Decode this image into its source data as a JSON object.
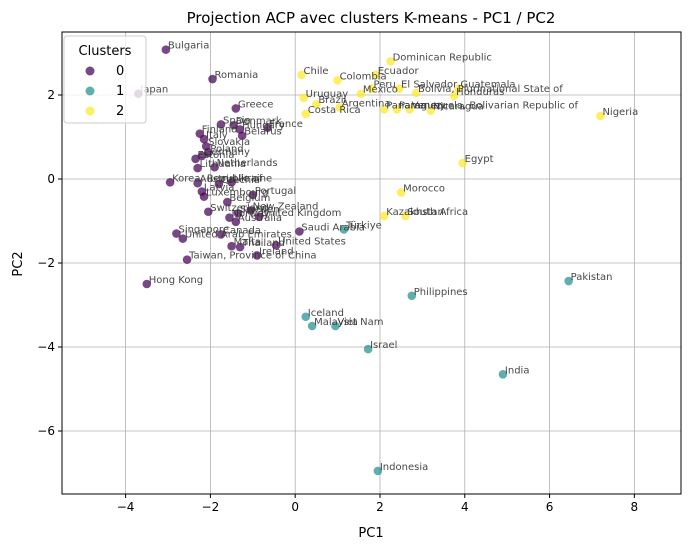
{
  "chart_data": {
    "type": "scatter",
    "title": "Projection ACP avec clusters K-means - PC1 / PC2",
    "xlabel": "PC1",
    "ylabel": "PC2",
    "xlim": [
      -5.5,
      9.1
    ],
    "ylim": [
      -7.5,
      3.5
    ],
    "xticks": [
      -4,
      -2,
      0,
      2,
      4,
      6,
      8
    ],
    "yticks": [
      -6,
      -4,
      -2,
      0,
      2
    ],
    "grid": true,
    "legend": {
      "title": "Clusters",
      "position": "top-left"
    },
    "series": [
      {
        "name": "0",
        "color": "#440154",
        "points": [
          {
            "label": "Bulgaria",
            "x": -3.05,
            "y": 3.08
          },
          {
            "label": "Romania",
            "x": -1.95,
            "y": 2.38
          },
          {
            "label": "Japan",
            "x": -3.7,
            "y": 2.03
          },
          {
            "label": "Greece",
            "x": -1.4,
            "y": 1.68
          },
          {
            "label": "Spain",
            "x": -1.75,
            "y": 1.3
          },
          {
            "label": "Denmark",
            "x": -1.45,
            "y": 1.28
          },
          {
            "label": "France",
            "x": -0.65,
            "y": 1.22
          },
          {
            "label": "Hungary",
            "x": -1.3,
            "y": 1.18
          },
          {
            "label": "Belarus",
            "x": -1.25,
            "y": 1.03
          },
          {
            "label": "Finland",
            "x": -2.25,
            "y": 1.08
          },
          {
            "label": "Italy",
            "x": -2.15,
            "y": 0.95
          },
          {
            "label": "Slovakia",
            "x": -2.1,
            "y": 0.78
          },
          {
            "label": "Poland",
            "x": -2.05,
            "y": 0.62
          },
          {
            "label": "Germany",
            "x": -2.2,
            "y": 0.55
          },
          {
            "label": "Estonia",
            "x": -2.35,
            "y": 0.48
          },
          {
            "label": "Netherlands",
            "x": -1.9,
            "y": 0.28
          },
          {
            "label": "Lithuania",
            "x": -2.3,
            "y": 0.26
          },
          {
            "label": "Korea, Republic of",
            "x": -2.95,
            "y": -0.08
          },
          {
            "label": "Austria",
            "x": -2.3,
            "y": -0.1
          },
          {
            "label": "Ukraine",
            "x": -1.5,
            "y": -0.08
          },
          {
            "label": "Czechia",
            "x": -1.8,
            "y": -0.12
          },
          {
            "label": "Latvia",
            "x": -2.2,
            "y": -0.3
          },
          {
            "label": "Luxembourg",
            "x": -2.15,
            "y": -0.42
          },
          {
            "label": "Portugal",
            "x": -1.0,
            "y": -0.38
          },
          {
            "label": "Belgium",
            "x": -1.6,
            "y": -0.55
          },
          {
            "label": "Switzerland",
            "x": -2.05,
            "y": -0.78
          },
          {
            "label": "New Zealand",
            "x": -1.05,
            "y": -0.75
          },
          {
            "label": "Sweden",
            "x": -1.35,
            "y": -0.82
          },
          {
            "label": "United Kingdom",
            "x": -0.85,
            "y": -0.9
          },
          {
            "label": "Norway",
            "x": -1.55,
            "y": -0.92
          },
          {
            "label": "Australia",
            "x": -1.4,
            "y": -1.02
          },
          {
            "label": "Saudi Arabia",
            "x": 0.1,
            "y": -1.25
          },
          {
            "label": "Singapore",
            "x": -2.8,
            "y": -1.3
          },
          {
            "label": "Canada",
            "x": -1.75,
            "y": -1.32
          },
          {
            "label": "United Arab Emirates",
            "x": -2.65,
            "y": -1.42
          },
          {
            "label": "Malta",
            "x": -1.5,
            "y": -1.6
          },
          {
            "label": "Thailand",
            "x": -1.3,
            "y": -1.62
          },
          {
            "label": "United States",
            "x": -0.45,
            "y": -1.58
          },
          {
            "label": "Ireland",
            "x": -0.9,
            "y": -1.82
          },
          {
            "label": "Taiwan, Province of China",
            "x": -2.55,
            "y": -1.92
          },
          {
            "label": "Hong Kong",
            "x": -3.5,
            "y": -2.5
          }
        ]
      },
      {
        "name": "1",
        "color": "#21918c",
        "points": [
          {
            "label": "Türkiye",
            "x": 1.15,
            "y": -1.2
          },
          {
            "label": "Pakistan",
            "x": 6.45,
            "y": -2.43
          },
          {
            "label": "Philippines",
            "x": 2.75,
            "y": -2.78
          },
          {
            "label": "Iceland",
            "x": 0.25,
            "y": -3.28
          },
          {
            "label": "Malaysia",
            "x": 0.4,
            "y": -3.5
          },
          {
            "label": "Viet Nam",
            "x": 0.95,
            "y": -3.5
          },
          {
            "label": "Israel",
            "x": 1.72,
            "y": -4.05
          },
          {
            "label": "India",
            "x": 4.9,
            "y": -4.65
          },
          {
            "label": "Indonesia",
            "x": 1.95,
            "y": -6.95
          }
        ]
      },
      {
        "name": "2",
        "color": "#fde725",
        "points": [
          {
            "label": "Dominican Republic",
            "x": 2.25,
            "y": 2.8
          },
          {
            "label": "Chile",
            "x": 0.15,
            "y": 2.48
          },
          {
            "label": "Ecuador",
            "x": 1.9,
            "y": 2.48
          },
          {
            "label": "Colombia",
            "x": 1.0,
            "y": 2.35
          },
          {
            "label": "Peru",
            "x": 1.8,
            "y": 2.15
          },
          {
            "label": "El Salvador",
            "x": 2.45,
            "y": 2.15
          },
          {
            "label": "Guatemala",
            "x": 3.85,
            "y": 2.15
          },
          {
            "label": "Mexico",
            "x": 1.55,
            "y": 2.03
          },
          {
            "label": "Bolivia, Plurinational State of",
            "x": 2.85,
            "y": 2.05
          },
          {
            "label": "Honduras",
            "x": 3.75,
            "y": 1.98
          },
          {
            "label": "Uruguay",
            "x": 0.2,
            "y": 1.93
          },
          {
            "label": "Brazil",
            "x": 0.5,
            "y": 1.78
          },
          {
            "label": "Argentina",
            "x": 1.05,
            "y": 1.7
          },
          {
            "label": "Panama",
            "x": 2.1,
            "y": 1.66
          },
          {
            "label": "Paraguay",
            "x": 2.4,
            "y": 1.66
          },
          {
            "label": "Venezuela, Bolivarian Republic of",
            "x": 2.7,
            "y": 1.66
          },
          {
            "label": "Nicaragua",
            "x": 3.2,
            "y": 1.63
          },
          {
            "label": "Costa Rica",
            "x": 0.25,
            "y": 1.55
          },
          {
            "label": "Nigeria",
            "x": 7.2,
            "y": 1.5
          },
          {
            "label": "Egypt",
            "x": 3.95,
            "y": 0.38
          },
          {
            "label": "Morocco",
            "x": 2.5,
            "y": -0.32
          },
          {
            "label": "Kazakhstan",
            "x": 2.1,
            "y": -0.88
          },
          {
            "label": "South Africa",
            "x": 2.6,
            "y": -0.88
          }
        ]
      }
    ]
  }
}
